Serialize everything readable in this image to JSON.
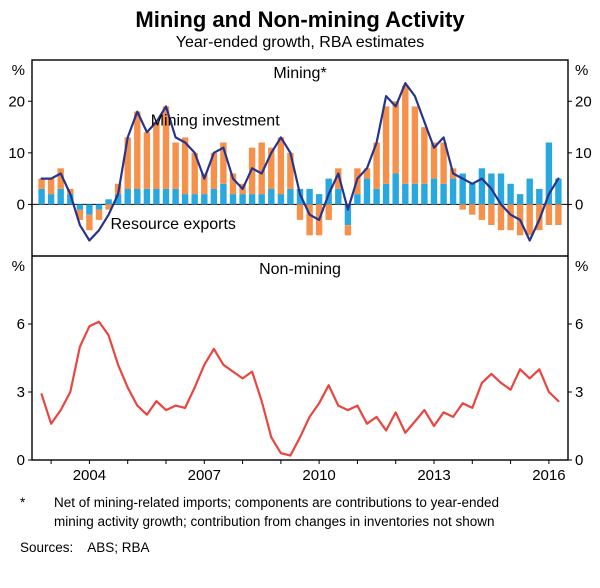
{
  "title": "Mining and Non-mining Activity",
  "subtitle": "Year-ended growth, RBA estimates",
  "footnote": {
    "marker": "*",
    "text": "Net of mining-related imports; components are contributions to year-ended mining activity growth; contribution from changes in inventories not shown"
  },
  "sources_label": "Sources:",
  "sources_value": "ABS; RBA",
  "colors": {
    "mining_investment": "#F5914B",
    "resource_exports": "#29A7DF",
    "mining_line": "#28348B",
    "non_mining_line": "#E8463F",
    "axis": "#000000"
  },
  "chart_data": [
    {
      "type": "bar",
      "title": "Mining*",
      "ylabel": "%",
      "ylim": [
        -10,
        28
      ],
      "yticks": [
        0,
        10,
        20
      ],
      "x_start": 2002.75,
      "x_step": 0.25,
      "xlim": [
        2002.5,
        2016.5
      ],
      "xticks": [
        2004,
        2007,
        2010,
        2013,
        2016
      ],
      "stacked": true,
      "legend_position": "none",
      "grid": false,
      "series": [
        {
          "name": "Resource exports",
          "kind": "bar",
          "color_key": "resource_exports",
          "values": [
            3,
            2,
            3,
            2,
            -1,
            -2,
            -1,
            1,
            2,
            3,
            3,
            3,
            3,
            3,
            3,
            2,
            2,
            2,
            3,
            4,
            2,
            2,
            2,
            2,
            3,
            2,
            3,
            3,
            3,
            2,
            5,
            3,
            -4,
            2,
            5,
            3,
            4,
            6,
            4,
            4,
            4,
            5,
            4,
            5,
            6,
            4,
            7,
            6,
            6,
            4,
            2,
            5,
            3,
            12,
            5
          ]
        },
        {
          "name": "Mining investment",
          "kind": "bar",
          "color_key": "mining_investment",
          "values": [
            2,
            3,
            4,
            1,
            -2,
            -3,
            -2,
            -1,
            2,
            10,
            15,
            11,
            13,
            16,
            9,
            11,
            8,
            4,
            7,
            8,
            4,
            2,
            9,
            10,
            8,
            11,
            7,
            -3,
            -6,
            -6,
            -3,
            4,
            -2,
            5,
            2,
            9,
            15,
            14,
            19,
            15,
            11,
            7,
            8,
            2,
            -1,
            -2,
            -3,
            -4,
            -5,
            -5,
            -6,
            -6,
            -5,
            -4,
            -4
          ]
        },
        {
          "name": "Mining activity (year-ended growth)",
          "kind": "line",
          "color_key": "mining_line",
          "values": [
            5,
            5,
            6,
            2,
            -4,
            -7,
            -5,
            -2,
            2,
            13,
            18,
            14,
            16,
            19,
            13,
            12,
            10,
            5,
            10,
            11,
            5,
            3,
            7,
            6,
            10,
            13,
            10,
            2,
            -2,
            -3,
            2,
            6,
            -1,
            5,
            7,
            12,
            21,
            19,
            23.5,
            21,
            16,
            11,
            13,
            6,
            5,
            4,
            5,
            3,
            0,
            -2,
            -3,
            -7,
            -3,
            2,
            5
          ]
        }
      ],
      "annotations": [
        {
          "text": "Mining investment",
          "color_key": "mining_investment",
          "x": 2005.6,
          "y": 15.3,
          "anchor": "start"
        },
        {
          "text": "Resource exports",
          "color_key": "resource_exports",
          "x": 2004.55,
          "y": -4.8,
          "anchor": "start"
        }
      ]
    },
    {
      "type": "line",
      "title": "Non-mining",
      "ylabel": "%",
      "ylim": [
        0,
        9
      ],
      "yticks": [
        0,
        3,
        6
      ],
      "x_start": 2002.75,
      "x_step": 0.25,
      "xlim": [
        2002.5,
        2016.5
      ],
      "xticks": [
        2004,
        2007,
        2010,
        2013,
        2016
      ],
      "stacked": false,
      "legend_position": "none",
      "grid": false,
      "series": [
        {
          "name": "Non-mining activity (year-ended growth)",
          "kind": "line",
          "color_key": "non_mining_line",
          "values": [
            2.9,
            1.6,
            2.2,
            3.0,
            5.0,
            5.9,
            6.1,
            5.5,
            4.2,
            3.2,
            2.4,
            2.0,
            2.6,
            2.2,
            2.4,
            2.3,
            3.2,
            4.2,
            4.9,
            4.2,
            3.9,
            3.6,
            3.9,
            2.6,
            1.0,
            0.3,
            0.2,
            1.0,
            1.9,
            2.5,
            3.3,
            2.4,
            2.2,
            2.4,
            1.6,
            1.9,
            1.3,
            2.1,
            1.2,
            1.7,
            2.2,
            1.5,
            2.1,
            1.9,
            2.5,
            2.3,
            3.4,
            3.8,
            3.4,
            3.1,
            4.0,
            3.6,
            4.0,
            3.0,
            2.6
          ]
        }
      ],
      "annotations": []
    }
  ]
}
